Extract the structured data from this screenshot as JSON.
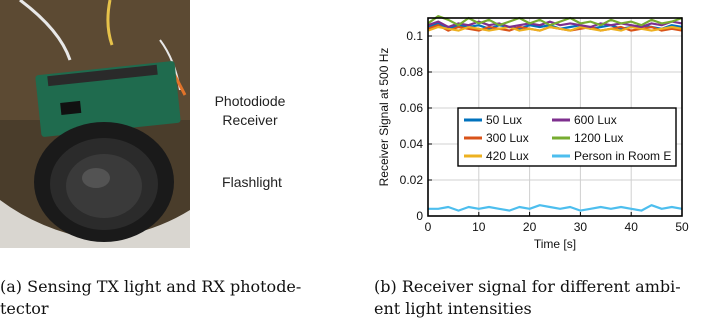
{
  "figure_a": {
    "labels": {
      "receiver": "Photodiode\nReceiver",
      "flashlight": "Flashlight"
    },
    "caption": "(a) Sensing TX light and RX photode-\ntector",
    "colors": {
      "board": "#1f6b4e",
      "lens_ring": "#1a1a1a",
      "background": "#6e5a3c"
    }
  },
  "figure_b": {
    "caption": "(b) Receiver signal for different ambi-\nent light intensities"
  },
  "chart_data": {
    "type": "line",
    "xlabel": "Time [s]",
    "ylabel": "Receiver Signal at 500 Hz",
    "xlim": [
      0,
      50
    ],
    "ylim": [
      0,
      0.11
    ],
    "xticks": [
      0,
      10,
      20,
      30,
      40,
      50
    ],
    "yticks": [
      0,
      0.02,
      0.04,
      0.06,
      0.08,
      0.1
    ],
    "ytick_labels": [
      "0",
      "0.02",
      "0.04",
      "0.06",
      "0.08",
      "0.1"
    ],
    "grid": true,
    "legend_placement": "center-right",
    "x": [
      0,
      2,
      4,
      6,
      8,
      10,
      12,
      14,
      16,
      18,
      20,
      22,
      24,
      26,
      28,
      30,
      32,
      34,
      36,
      38,
      40,
      42,
      44,
      46,
      48,
      50
    ],
    "series": [
      {
        "name": "50 Lux",
        "color": "#0072bd",
        "values": [
          0.105,
          0.107,
          0.104,
          0.106,
          0.105,
          0.106,
          0.104,
          0.106,
          0.105,
          0.104,
          0.106,
          0.105,
          0.106,
          0.104,
          0.105,
          0.106,
          0.104,
          0.105,
          0.106,
          0.104,
          0.105,
          0.106,
          0.105,
          0.104,
          0.106,
          0.105
        ]
      },
      {
        "name": "300 Lux",
        "color": "#d95319",
        "values": [
          0.104,
          0.106,
          0.103,
          0.105,
          0.104,
          0.103,
          0.105,
          0.104,
          0.103,
          0.105,
          0.104,
          0.103,
          0.105,
          0.104,
          0.103,
          0.104,
          0.105,
          0.103,
          0.104,
          0.105,
          0.103,
          0.104,
          0.105,
          0.103,
          0.104,
          0.103
        ]
      },
      {
        "name": "420 Lux",
        "color": "#edb120",
        "values": [
          0.103,
          0.105,
          0.104,
          0.103,
          0.105,
          0.104,
          0.103,
          0.104,
          0.105,
          0.103,
          0.104,
          0.103,
          0.105,
          0.104,
          0.103,
          0.105,
          0.104,
          0.103,
          0.104,
          0.103,
          0.105,
          0.104,
          0.103,
          0.104,
          0.105,
          0.104
        ]
      },
      {
        "name": "600 Lux",
        "color": "#7e2f8e",
        "values": [
          0.106,
          0.108,
          0.105,
          0.107,
          0.106,
          0.108,
          0.106,
          0.107,
          0.105,
          0.106,
          0.107,
          0.106,
          0.108,
          0.106,
          0.107,
          0.106,
          0.105,
          0.107,
          0.106,
          0.107,
          0.106,
          0.105,
          0.107,
          0.106,
          0.108,
          0.107
        ]
      },
      {
        "name": "1200 Lux",
        "color": "#77ac30",
        "values": [
          0.107,
          0.111,
          0.109,
          0.106,
          0.11,
          0.107,
          0.109,
          0.106,
          0.108,
          0.11,
          0.107,
          0.109,
          0.106,
          0.108,
          0.11,
          0.107,
          0.108,
          0.106,
          0.109,
          0.107,
          0.108,
          0.106,
          0.109,
          0.107,
          0.108,
          0.11
        ]
      },
      {
        "name": "Person in Room E",
        "color": "#4dbeee",
        "values": [
          0.004,
          0.004,
          0.005,
          0.003,
          0.005,
          0.004,
          0.005,
          0.004,
          0.003,
          0.005,
          0.004,
          0.006,
          0.005,
          0.004,
          0.005,
          0.003,
          0.004,
          0.005,
          0.004,
          0.005,
          0.004,
          0.003,
          0.006,
          0.004,
          0.005,
          0.004
        ]
      }
    ]
  }
}
